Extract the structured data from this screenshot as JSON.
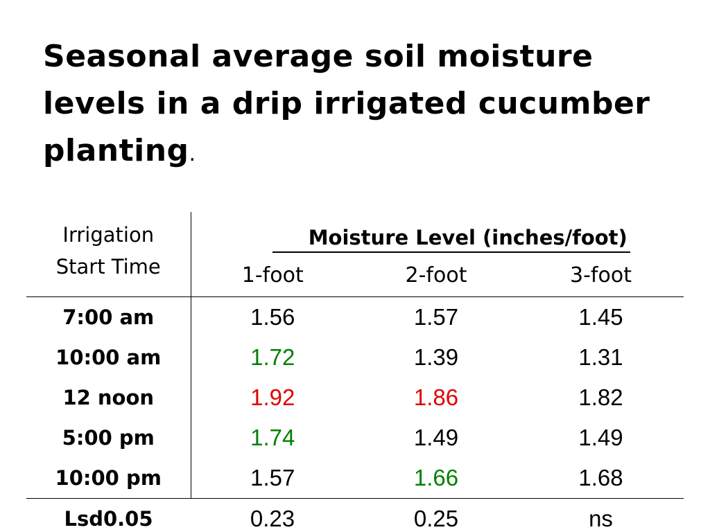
{
  "slide": {
    "title": "Seasonal average soil moisture levels in a drip irrigated cucumber planting",
    "title_period": "."
  },
  "colors": {
    "highlight_green": "#008000",
    "highlight_red": "#e00000",
    "text": "#000000"
  },
  "table": {
    "row_header_line1": "Irrigation",
    "row_header_line2": "Start Time",
    "group_header": "Moisture Level (inches/foot)",
    "columns": [
      "1-foot",
      "2-foot",
      "3-foot"
    ],
    "rows": [
      {
        "time": "7:00 am",
        "values": [
          "1.56",
          "1.57",
          "1.45"
        ],
        "colors": [
          "normal",
          "normal",
          "normal"
        ]
      },
      {
        "time": "10:00 am",
        "values": [
          "1.72",
          "1.39",
          "1.31"
        ],
        "colors": [
          "green",
          "normal",
          "normal"
        ]
      },
      {
        "time": "12 noon",
        "values": [
          "1.92",
          "1.86",
          "1.82"
        ],
        "colors": [
          "red",
          "red",
          "normal"
        ]
      },
      {
        "time": "5:00 pm",
        "values": [
          "1.74",
          "1.49",
          "1.49"
        ],
        "colors": [
          "green",
          "normal",
          "normal"
        ]
      },
      {
        "time": "10:00 pm",
        "values": [
          "1.57",
          "1.66",
          "1.68"
        ],
        "colors": [
          "normal",
          "green",
          "normal"
        ]
      }
    ],
    "lsd": {
      "label": "Lsd0.05",
      "values": [
        "0.23",
        "0.25",
        "ns"
      ]
    }
  },
  "chart_data": {
    "type": "table",
    "title": "Seasonal average soil moisture levels in a drip irrigated cucumber planting.",
    "row_label": "Irrigation Start Time",
    "value_label": "Moisture Level (inches/foot)",
    "columns": [
      "1-foot",
      "2-foot",
      "3-foot"
    ],
    "rows": [
      {
        "time": "7:00 am",
        "1-foot": 1.56,
        "2-foot": 1.57,
        "3-foot": 1.45
      },
      {
        "time": "10:00 am",
        "1-foot": 1.72,
        "2-foot": 1.39,
        "3-foot": 1.31
      },
      {
        "time": "12 noon",
        "1-foot": 1.92,
        "2-foot": 1.86,
        "3-foot": 1.82
      },
      {
        "time": "5:00 pm",
        "1-foot": 1.74,
        "2-foot": 1.49,
        "3-foot": 1.49
      },
      {
        "time": "10:00 pm",
        "1-foot": 1.57,
        "2-foot": 1.66,
        "3-foot": 1.68
      }
    ],
    "lsd_0_05": {
      "1-foot": 0.23,
      "2-foot": 0.25,
      "3-foot": "ns"
    }
  }
}
